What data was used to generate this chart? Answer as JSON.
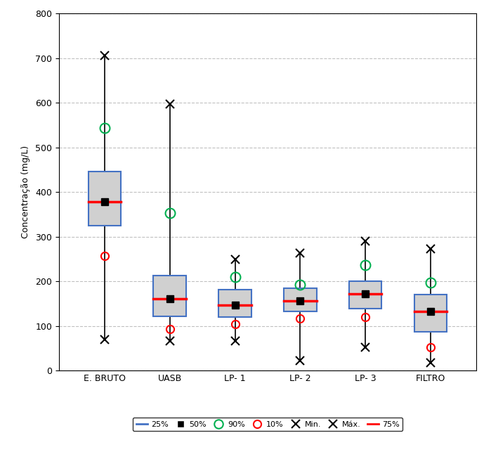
{
  "categories": [
    "E. BRUTO",
    "UASB",
    "LP- 1",
    "LP- 2",
    "LP- 3",
    "FILTRO"
  ],
  "p25": [
    325,
    122,
    120,
    133,
    139,
    87
  ],
  "p50": [
    379,
    161,
    147,
    157,
    172,
    132
  ],
  "p75": [
    446,
    213,
    181,
    184,
    200,
    170
  ],
  "p10": [
    257,
    94,
    104,
    117,
    120,
    52
  ],
  "p90": [
    543,
    353,
    210,
    193,
    236,
    198
  ],
  "min_vals": [
    69,
    66,
    67,
    23,
    53,
    18
  ],
  "max_vals": [
    706,
    597,
    250,
    263,
    290,
    273
  ],
  "ylabel": "Concentração (mg/L)",
  "ylim": [
    0,
    800
  ],
  "yticks": [
    0,
    100,
    200,
    300,
    400,
    500,
    600,
    700,
    800
  ],
  "box_facecolor": "#d0d0d0",
  "box_edgecolor": "#4472c4",
  "whisker_color": "#000000",
  "median_color": "#ff0000",
  "p25_line_color": "#4472c4",
  "p75_line_color": "#ff0000",
  "marker_50_color": "#000000",
  "marker_90_color": "#00b050",
  "marker_10_color": "#ff0000",
  "min_marker_color": "#000000",
  "max_marker_color": "#000000",
  "background_color": "#ffffff",
  "grid_color": "#c0c0c0",
  "box_width": 0.5
}
